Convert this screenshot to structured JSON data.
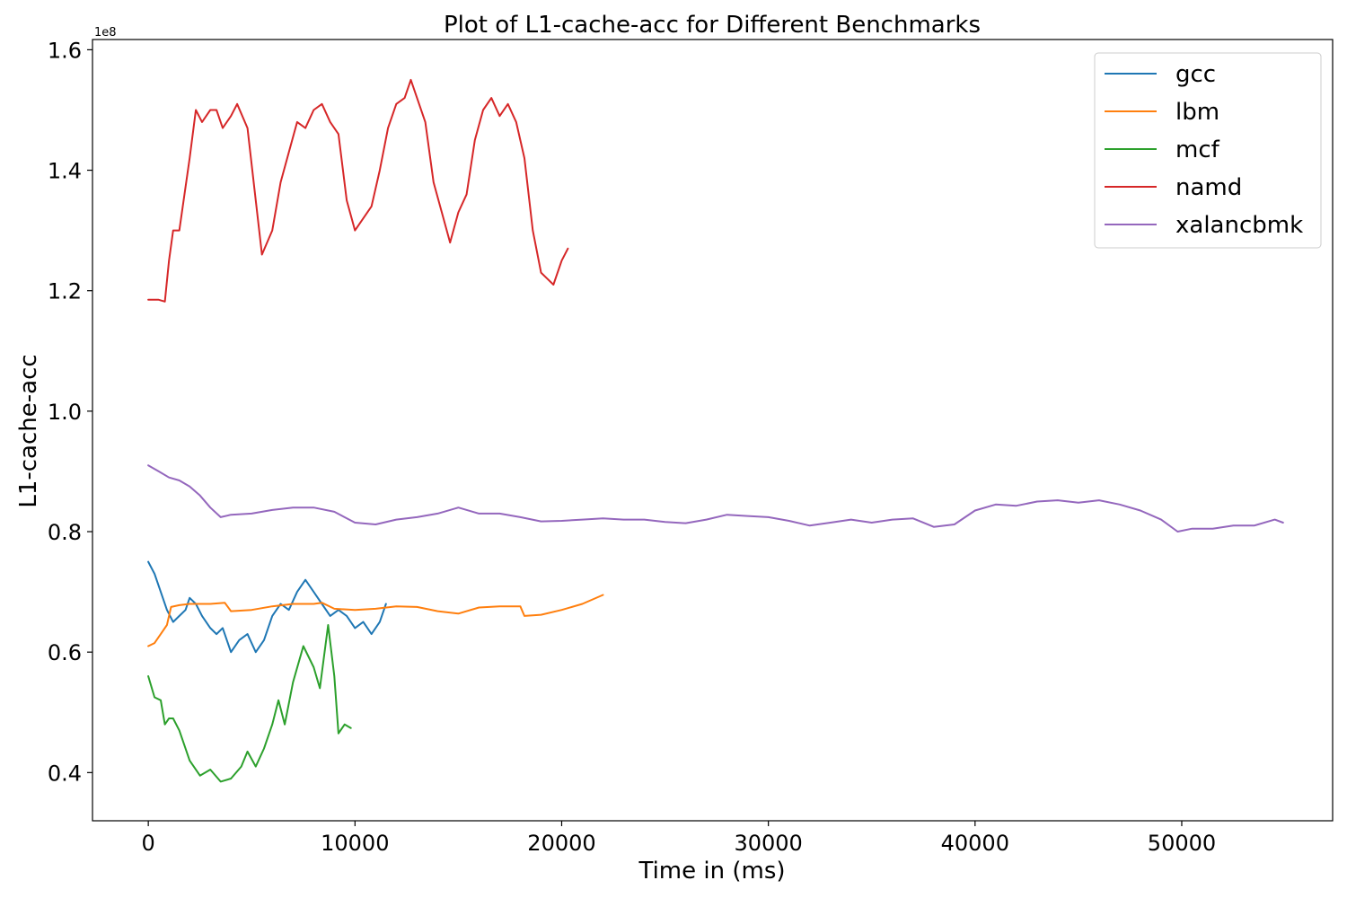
{
  "chart_data": {
    "type": "line",
    "title": "Plot of L1-cache-acc for Different Benchmarks",
    "xlabel": "Time in (ms)",
    "ylabel": "L1-cache-acc",
    "y_offset_label": "1e8",
    "xlim": [
      -2700,
      57300
    ],
    "ylim": [
      0.32,
      1.617
    ],
    "y_scale_factor": 100000000,
    "x_ticks": [
      0,
      10000,
      20000,
      30000,
      40000,
      50000
    ],
    "x_tick_labels": [
      "0",
      "10000",
      "20000",
      "30000",
      "40000",
      "50000"
    ],
    "y_ticks": [
      0.4,
      0.6,
      0.8,
      1.0,
      1.2,
      1.4,
      1.6
    ],
    "y_tick_labels": [
      "0.4",
      "0.6",
      "0.8",
      "1.0",
      "1.2",
      "1.4",
      "1.6"
    ],
    "grid": false,
    "legend_position": "top-right",
    "series": [
      {
        "name": "gcc",
        "color": "#1f77b4",
        "points": [
          [
            0,
            0.75
          ],
          [
            300,
            0.73
          ],
          [
            600,
            0.7
          ],
          [
            900,
            0.67
          ],
          [
            1200,
            0.65
          ],
          [
            1500,
            0.66
          ],
          [
            1800,
            0.67
          ],
          [
            2000,
            0.69
          ],
          [
            2300,
            0.68
          ],
          [
            2600,
            0.66
          ],
          [
            3000,
            0.64
          ],
          [
            3300,
            0.63
          ],
          [
            3600,
            0.64
          ],
          [
            4000,
            0.6
          ],
          [
            4400,
            0.62
          ],
          [
            4800,
            0.63
          ],
          [
            5200,
            0.6
          ],
          [
            5600,
            0.62
          ],
          [
            6000,
            0.66
          ],
          [
            6400,
            0.68
          ],
          [
            6800,
            0.67
          ],
          [
            7200,
            0.7
          ],
          [
            7600,
            0.72
          ],
          [
            8000,
            0.7
          ],
          [
            8400,
            0.68
          ],
          [
            8800,
            0.66
          ],
          [
            9200,
            0.67
          ],
          [
            9600,
            0.66
          ],
          [
            10000,
            0.64
          ],
          [
            10400,
            0.65
          ],
          [
            10800,
            0.63
          ],
          [
            11200,
            0.65
          ],
          [
            11500,
            0.68
          ]
        ]
      },
      {
        "name": "lbm",
        "color": "#ff7f0e",
        "points": [
          [
            0,
            0.61
          ],
          [
            300,
            0.615
          ],
          [
            600,
            0.63
          ],
          [
            900,
            0.645
          ],
          [
            1100,
            0.675
          ],
          [
            1500,
            0.678
          ],
          [
            2000,
            0.68
          ],
          [
            3000,
            0.68
          ],
          [
            3700,
            0.682
          ],
          [
            4000,
            0.668
          ],
          [
            5000,
            0.67
          ],
          [
            6000,
            0.676
          ],
          [
            7000,
            0.68
          ],
          [
            8000,
            0.68
          ],
          [
            8400,
            0.682
          ],
          [
            9000,
            0.672
          ],
          [
            10000,
            0.67
          ],
          [
            11000,
            0.672
          ],
          [
            12000,
            0.676
          ],
          [
            13000,
            0.675
          ],
          [
            14000,
            0.668
          ],
          [
            15000,
            0.664
          ],
          [
            16000,
            0.674
          ],
          [
            17000,
            0.676
          ],
          [
            18000,
            0.676
          ],
          [
            18200,
            0.66
          ],
          [
            19000,
            0.662
          ],
          [
            20000,
            0.67
          ],
          [
            21000,
            0.68
          ],
          [
            22000,
            0.695
          ]
        ]
      },
      {
        "name": "mcf",
        "color": "#2ca02c",
        "points": [
          [
            0,
            0.56
          ],
          [
            300,
            0.525
          ],
          [
            600,
            0.52
          ],
          [
            800,
            0.48
          ],
          [
            1000,
            0.49
          ],
          [
            1200,
            0.49
          ],
          [
            1500,
            0.47
          ],
          [
            2000,
            0.42
          ],
          [
            2500,
            0.395
          ],
          [
            3000,
            0.405
          ],
          [
            3500,
            0.385
          ],
          [
            4000,
            0.39
          ],
          [
            4500,
            0.41
          ],
          [
            4800,
            0.435
          ],
          [
            5200,
            0.41
          ],
          [
            5600,
            0.44
          ],
          [
            6000,
            0.48
          ],
          [
            6300,
            0.52
          ],
          [
            6600,
            0.48
          ],
          [
            7000,
            0.55
          ],
          [
            7500,
            0.61
          ],
          [
            8000,
            0.575
          ],
          [
            8300,
            0.54
          ],
          [
            8700,
            0.645
          ],
          [
            9000,
            0.56
          ],
          [
            9200,
            0.465
          ],
          [
            9500,
            0.48
          ],
          [
            9800,
            0.474
          ]
        ]
      },
      {
        "name": "namd",
        "color": "#d62728",
        "points": [
          [
            0,
            1.185
          ],
          [
            500,
            1.185
          ],
          [
            800,
            1.182
          ],
          [
            1000,
            1.25
          ],
          [
            1200,
            1.3
          ],
          [
            1500,
            1.3
          ],
          [
            2000,
            1.42
          ],
          [
            2300,
            1.5
          ],
          [
            2600,
            1.48
          ],
          [
            3000,
            1.5
          ],
          [
            3300,
            1.5
          ],
          [
            3600,
            1.47
          ],
          [
            4000,
            1.49
          ],
          [
            4300,
            1.51
          ],
          [
            4800,
            1.47
          ],
          [
            5200,
            1.35
          ],
          [
            5500,
            1.26
          ],
          [
            6000,
            1.3
          ],
          [
            6400,
            1.38
          ],
          [
            6800,
            1.43
          ],
          [
            7200,
            1.48
          ],
          [
            7600,
            1.47
          ],
          [
            8000,
            1.5
          ],
          [
            8400,
            1.51
          ],
          [
            8800,
            1.48
          ],
          [
            9200,
            1.46
          ],
          [
            9600,
            1.35
          ],
          [
            10000,
            1.3
          ],
          [
            10400,
            1.32
          ],
          [
            10800,
            1.34
          ],
          [
            11200,
            1.4
          ],
          [
            11600,
            1.47
          ],
          [
            12000,
            1.51
          ],
          [
            12400,
            1.52
          ],
          [
            12700,
            1.55
          ],
          [
            13000,
            1.52
          ],
          [
            13400,
            1.48
          ],
          [
            13800,
            1.38
          ],
          [
            14200,
            1.33
          ],
          [
            14600,
            1.28
          ],
          [
            15000,
            1.33
          ],
          [
            15400,
            1.36
          ],
          [
            15800,
            1.45
          ],
          [
            16200,
            1.5
          ],
          [
            16600,
            1.52
          ],
          [
            17000,
            1.49
          ],
          [
            17400,
            1.51
          ],
          [
            17800,
            1.48
          ],
          [
            18200,
            1.42
          ],
          [
            18600,
            1.3
          ],
          [
            19000,
            1.23
          ],
          [
            19300,
            1.22
          ],
          [
            19600,
            1.21
          ],
          [
            20000,
            1.25
          ],
          [
            20300,
            1.27
          ]
        ]
      },
      {
        "name": "xalancbmk",
        "color": "#9467bd",
        "points": [
          [
            0,
            0.91
          ],
          [
            500,
            0.9
          ],
          [
            1000,
            0.89
          ],
          [
            1500,
            0.885
          ],
          [
            2000,
            0.875
          ],
          [
            2500,
            0.86
          ],
          [
            3000,
            0.84
          ],
          [
            3500,
            0.824
          ],
          [
            4000,
            0.828
          ],
          [
            5000,
            0.83
          ],
          [
            6000,
            0.836
          ],
          [
            7000,
            0.84
          ],
          [
            8000,
            0.84
          ],
          [
            9000,
            0.833
          ],
          [
            10000,
            0.815
          ],
          [
            11000,
            0.812
          ],
          [
            12000,
            0.82
          ],
          [
            13000,
            0.824
          ],
          [
            14000,
            0.83
          ],
          [
            15000,
            0.84
          ],
          [
            16000,
            0.83
          ],
          [
            17000,
            0.83
          ],
          [
            18000,
            0.824
          ],
          [
            19000,
            0.817
          ],
          [
            20000,
            0.818
          ],
          [
            21000,
            0.82
          ],
          [
            22000,
            0.822
          ],
          [
            23000,
            0.82
          ],
          [
            24000,
            0.82
          ],
          [
            25000,
            0.816
          ],
          [
            26000,
            0.814
          ],
          [
            27000,
            0.82
          ],
          [
            28000,
            0.828
          ],
          [
            29000,
            0.826
          ],
          [
            30000,
            0.824
          ],
          [
            31000,
            0.818
          ],
          [
            32000,
            0.81
          ],
          [
            33000,
            0.815
          ],
          [
            34000,
            0.82
          ],
          [
            35000,
            0.815
          ],
          [
            36000,
            0.82
          ],
          [
            37000,
            0.822
          ],
          [
            38000,
            0.808
          ],
          [
            39000,
            0.812
          ],
          [
            40000,
            0.835
          ],
          [
            41000,
            0.845
          ],
          [
            42000,
            0.843
          ],
          [
            43000,
            0.85
          ],
          [
            44000,
            0.852
          ],
          [
            45000,
            0.848
          ],
          [
            46000,
            0.852
          ],
          [
            47000,
            0.845
          ],
          [
            48000,
            0.835
          ],
          [
            49000,
            0.82
          ],
          [
            49800,
            0.8
          ],
          [
            50500,
            0.805
          ],
          [
            51500,
            0.805
          ],
          [
            52500,
            0.81
          ],
          [
            53500,
            0.81
          ],
          [
            54500,
            0.82
          ],
          [
            54900,
            0.815
          ]
        ]
      }
    ]
  }
}
